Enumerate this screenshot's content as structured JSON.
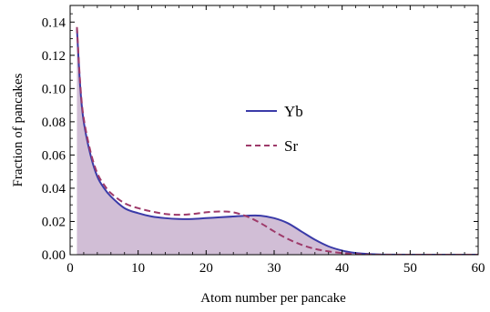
{
  "chart_data": {
    "type": "line",
    "title": "",
    "xlabel": "Atom number per pancake",
    "ylabel": "Fraction of pancakes",
    "xlim": [
      0,
      60
    ],
    "ylim": [
      0,
      0.15
    ],
    "x_ticks": [
      0,
      10,
      20,
      30,
      40,
      50,
      60
    ],
    "x_tick_labels": [
      "0",
      "10",
      "20",
      "30",
      "40",
      "50",
      "60"
    ],
    "y_ticks": [
      0,
      0.02,
      0.04,
      0.06,
      0.08,
      0.1,
      0.12,
      0.14
    ],
    "y_tick_labels": [
      "0.00",
      "0.02",
      "0.04",
      "0.06",
      "0.08",
      "0.10",
      "0.12",
      "0.14"
    ],
    "grid": false,
    "legend_position": "center",
    "series": [
      {
        "name": "Yb",
        "style": "solid",
        "color": "#3a3aa8",
        "fill": "#c9b3cf",
        "x": [
          1,
          1.5,
          2,
          3,
          4,
          5,
          6,
          8,
          10,
          12,
          14,
          16,
          18,
          20,
          22,
          24,
          26,
          28,
          30,
          32,
          34,
          36,
          38,
          40,
          42,
          44,
          46,
          50,
          55,
          60
        ],
        "y": [
          0.136,
          0.1,
          0.08,
          0.06,
          0.047,
          0.04,
          0.035,
          0.028,
          0.025,
          0.023,
          0.022,
          0.0215,
          0.0215,
          0.022,
          0.0225,
          0.023,
          0.0235,
          0.0235,
          0.022,
          0.019,
          0.014,
          0.009,
          0.005,
          0.0025,
          0.001,
          0.0004,
          0.0001,
          0,
          0,
          0
        ]
      },
      {
        "name": "Sr",
        "style": "dashed",
        "color": "#9e3a6a",
        "x": [
          1,
          1.5,
          2,
          3,
          4,
          5,
          6,
          8,
          10,
          12,
          14,
          16,
          18,
          20,
          22,
          24,
          26,
          28,
          30,
          32,
          34,
          36,
          38,
          40,
          42,
          44,
          46,
          50,
          55,
          60
        ],
        "y": [
          0.137,
          0.102,
          0.082,
          0.062,
          0.049,
          0.042,
          0.037,
          0.031,
          0.028,
          0.026,
          0.0245,
          0.024,
          0.0245,
          0.0255,
          0.026,
          0.0255,
          0.023,
          0.019,
          0.014,
          0.0095,
          0.006,
          0.0035,
          0.002,
          0.001,
          0.0004,
          0.0001,
          0,
          0,
          0,
          0
        ]
      }
    ]
  }
}
